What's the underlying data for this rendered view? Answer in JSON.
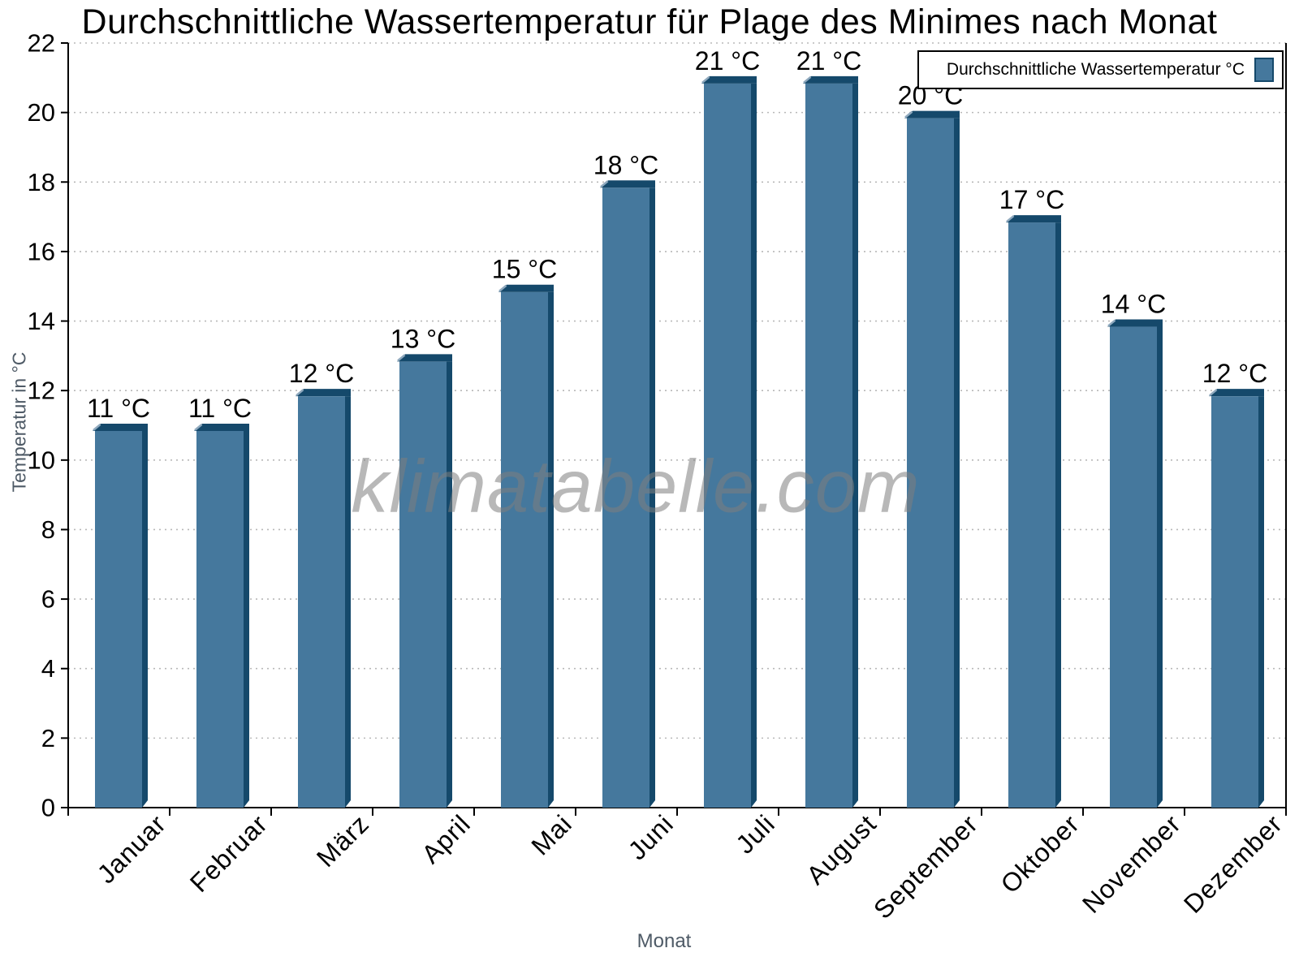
{
  "title": "Durchschnittliche Wassertemperatur für Plage des Minimes nach Monat",
  "watermark": "klimatabelle.com",
  "legend": {
    "label": "Durchschnittliche Wassertemperatur °C"
  },
  "axes": {
    "x_title": "Monat",
    "y_title": "Temperatur in °C"
  },
  "chart_data": {
    "type": "bar",
    "title": "Durchschnittliche Wassertemperatur für Plage des Minimes nach Monat",
    "categories": [
      "Januar",
      "Februar",
      "März",
      "April",
      "Mai",
      "Juni",
      "Juli",
      "August",
      "September",
      "Oktober",
      "November",
      "Dezember"
    ],
    "values": [
      11,
      11,
      12,
      13,
      15,
      18,
      21,
      21,
      20,
      17,
      14,
      12
    ],
    "bar_labels": [
      "11 °C",
      "11 °C",
      "12 °C",
      "13 °C",
      "15 °C",
      "18 °C",
      "21 °C",
      "21 °C",
      "20 °C",
      "17 °C",
      "14 °C",
      "12 °C"
    ],
    "xlabel": "Monat",
    "ylabel": "Temperatur in °C",
    "ylim": [
      0,
      22
    ],
    "ytick_step": 2,
    "yticks": [
      0,
      2,
      4,
      6,
      8,
      10,
      12,
      14,
      16,
      18,
      20,
      22
    ],
    "grid": true,
    "legend": [
      "Durchschnittliche Wassertemperatur °C"
    ],
    "legend_position": "top-right",
    "colors": {
      "bar_face": "#45789D",
      "bar_edge": "#15496B",
      "bar_bevel": "#8FA9BE",
      "grid": "#b8b8b8",
      "axis": "#000000",
      "axis_title": "#4e5a66",
      "label": "#000000"
    }
  }
}
